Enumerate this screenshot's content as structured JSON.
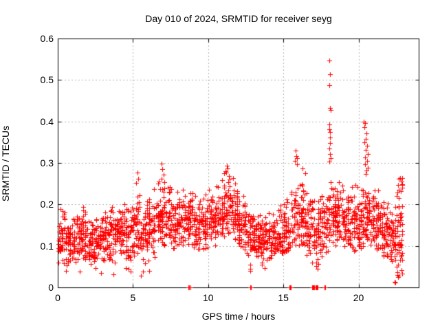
{
  "window": {
    "background": "#ffffff"
  },
  "chart_data": {
    "type": "scatter",
    "title": "Day 010 of 2024, SRMTID for receiver seyg",
    "xlabel": "GPS time / hours",
    "ylabel": "SRMTID / TECUs",
    "xlim": [
      0,
      24
    ],
    "ylim": [
      0,
      0.6
    ],
    "xticks": [
      {
        "v": 0,
        "label": "0"
      },
      {
        "v": 5,
        "label": "5"
      },
      {
        "v": 10,
        "label": "10"
      },
      {
        "v": 15,
        "label": "15"
      },
      {
        "v": 20,
        "label": "20"
      }
    ],
    "yticks": [
      {
        "v": 0,
        "label": "0"
      },
      {
        "v": 0.1,
        "label": "0.1"
      },
      {
        "v": 0.2,
        "label": "0.2"
      },
      {
        "v": 0.3,
        "label": "0.3"
      },
      {
        "v": 0.4,
        "label": "0.4"
      },
      {
        "v": 0.5,
        "label": "0.5"
      },
      {
        "v": 0.6,
        "label": "0.6"
      }
    ],
    "grid": {
      "show": true,
      "style": "dashed",
      "color": "#b3b3b3"
    },
    "legend": null,
    "marker": {
      "shape": "plus",
      "color": "#ff0000",
      "size": 7
    },
    "series_name": "SRMTID",
    "band_segments_columns": [
      "x_start_hour",
      "x_end_hour",
      "n_points",
      "y_center",
      "y_sigma",
      "y_min",
      "y_max"
    ],
    "band_segments": [
      [
        0.0,
        0.5,
        50,
        0.125,
        0.035,
        0.04,
        0.19
      ],
      [
        0.5,
        1.0,
        50,
        0.115,
        0.03,
        0.05,
        0.17
      ],
      [
        1.0,
        1.5,
        50,
        0.12,
        0.03,
        0.06,
        0.18
      ],
      [
        1.5,
        2.0,
        50,
        0.125,
        0.032,
        0.06,
        0.2
      ],
      [
        2.0,
        2.5,
        50,
        0.11,
        0.03,
        0.05,
        0.17
      ],
      [
        2.5,
        3.0,
        50,
        0.115,
        0.03,
        0.035,
        0.17
      ],
      [
        3.0,
        3.5,
        50,
        0.12,
        0.03,
        0.06,
        0.18
      ],
      [
        3.5,
        4.0,
        50,
        0.13,
        0.033,
        0.03,
        0.2
      ],
      [
        4.0,
        4.5,
        50,
        0.14,
        0.032,
        0.08,
        0.21
      ],
      [
        4.5,
        5.0,
        50,
        0.135,
        0.032,
        0.04,
        0.2
      ],
      [
        5.0,
        5.5,
        50,
        0.14,
        0.035,
        0.07,
        0.26
      ],
      [
        5.5,
        6.0,
        50,
        0.13,
        0.035,
        0.03,
        0.22
      ],
      [
        6.0,
        6.5,
        50,
        0.15,
        0.035,
        0.04,
        0.25
      ],
      [
        6.5,
        7.0,
        50,
        0.175,
        0.04,
        0.1,
        0.295
      ],
      [
        7.0,
        7.5,
        50,
        0.17,
        0.04,
        0.1,
        0.28
      ],
      [
        7.5,
        8.0,
        50,
        0.155,
        0.035,
        0.08,
        0.245
      ],
      [
        8.0,
        8.5,
        50,
        0.165,
        0.035,
        0.1,
        0.27
      ],
      [
        8.5,
        9.0,
        50,
        0.16,
        0.033,
        0.1,
        0.25
      ],
      [
        9.0,
        9.5,
        50,
        0.15,
        0.032,
        0.09,
        0.24
      ],
      [
        9.5,
        10.0,
        50,
        0.15,
        0.032,
        0.09,
        0.235
      ],
      [
        10.0,
        10.5,
        50,
        0.16,
        0.033,
        0.1,
        0.25
      ],
      [
        10.5,
        11.0,
        50,
        0.17,
        0.035,
        0.11,
        0.26
      ],
      [
        11.0,
        11.5,
        50,
        0.19,
        0.04,
        0.12,
        0.295
      ],
      [
        11.5,
        12.0,
        50,
        0.175,
        0.038,
        0.11,
        0.27
      ],
      [
        12.0,
        12.5,
        50,
        0.15,
        0.035,
        0.09,
        0.23
      ],
      [
        12.5,
        13.0,
        50,
        0.13,
        0.035,
        0.04,
        0.2
      ],
      [
        13.0,
        13.5,
        50,
        0.12,
        0.03,
        0.07,
        0.18
      ],
      [
        13.5,
        14.0,
        50,
        0.115,
        0.03,
        0.05,
        0.17
      ],
      [
        14.0,
        14.5,
        50,
        0.12,
        0.03,
        0.07,
        0.185
      ],
      [
        14.5,
        15.0,
        50,
        0.13,
        0.032,
        0.08,
        0.2
      ],
      [
        15.0,
        15.5,
        50,
        0.14,
        0.035,
        0.08,
        0.23
      ],
      [
        15.5,
        16.0,
        50,
        0.175,
        0.045,
        0.1,
        0.33
      ],
      [
        16.0,
        16.5,
        50,
        0.17,
        0.045,
        0.1,
        0.31
      ],
      [
        16.5,
        17.0,
        50,
        0.15,
        0.04,
        0.07,
        0.27
      ],
      [
        17.0,
        17.5,
        50,
        0.13,
        0.04,
        0.05,
        0.24
      ],
      [
        17.5,
        18.0,
        50,
        0.14,
        0.04,
        0.06,
        0.26
      ],
      [
        18.0,
        18.5,
        55,
        0.17,
        0.045,
        0.1,
        0.3
      ],
      [
        18.5,
        19.0,
        55,
        0.175,
        0.04,
        0.11,
        0.27
      ],
      [
        19.0,
        19.5,
        50,
        0.16,
        0.038,
        0.1,
        0.25
      ],
      [
        19.5,
        20.0,
        50,
        0.155,
        0.038,
        0.08,
        0.26
      ],
      [
        20.0,
        20.5,
        55,
        0.16,
        0.04,
        0.09,
        0.3
      ],
      [
        20.5,
        21.0,
        55,
        0.17,
        0.042,
        0.1,
        0.3
      ],
      [
        21.0,
        21.5,
        50,
        0.15,
        0.038,
        0.09,
        0.24
      ],
      [
        21.5,
        22.0,
        50,
        0.13,
        0.035,
        0.07,
        0.22
      ],
      [
        22.0,
        22.5,
        50,
        0.12,
        0.035,
        0.04,
        0.2
      ],
      [
        22.5,
        22.95,
        55,
        0.13,
        0.06,
        0.025,
        0.265
      ]
    ],
    "outlier_points": [
      [
        18.05,
        0.547
      ],
      [
        18.08,
        0.513
      ],
      [
        18.06,
        0.488
      ],
      [
        18.1,
        0.433
      ],
      [
        18.13,
        0.428
      ],
      [
        18.07,
        0.392
      ],
      [
        18.05,
        0.381
      ],
      [
        18.11,
        0.374
      ],
      [
        18.08,
        0.362
      ],
      [
        18.12,
        0.348
      ],
      [
        18.06,
        0.334
      ],
      [
        18.09,
        0.322
      ],
      [
        18.14,
        0.312
      ],
      [
        18.04,
        0.303
      ],
      [
        20.36,
        0.4
      ],
      [
        20.44,
        0.396
      ],
      [
        20.41,
        0.386
      ],
      [
        20.52,
        0.371
      ],
      [
        20.47,
        0.358
      ],
      [
        20.39,
        0.349
      ],
      [
        20.55,
        0.341
      ],
      [
        20.5,
        0.331
      ],
      [
        20.6,
        0.322
      ],
      [
        20.45,
        0.313
      ],
      [
        20.57,
        0.305
      ],
      [
        20.42,
        0.296
      ],
      [
        20.63,
        0.288
      ],
      [
        20.53,
        0.281
      ],
      [
        20.48,
        0.273
      ],
      [
        15.82,
        0.33
      ],
      [
        15.87,
        0.316
      ],
      [
        15.79,
        0.305
      ],
      [
        15.92,
        0.296
      ],
      [
        16.26,
        0.287
      ],
      [
        11.24,
        0.294
      ],
      [
        11.31,
        0.286
      ],
      [
        11.19,
        0.277
      ],
      [
        11.36,
        0.268
      ],
      [
        6.88,
        0.298
      ],
      [
        6.97,
        0.285
      ],
      [
        7.05,
        0.272
      ],
      [
        6.92,
        0.262
      ],
      [
        5.28,
        0.276
      ],
      [
        5.34,
        0.262
      ],
      [
        5.22,
        0.252
      ],
      [
        22.78,
        0.264
      ],
      [
        22.84,
        0.256
      ],
      [
        22.89,
        0.248
      ],
      [
        0.55,
        0.04
      ],
      [
        1.45,
        0.038
      ],
      [
        2.52,
        0.046
      ],
      [
        2.9,
        0.035
      ],
      [
        3.72,
        0.032
      ],
      [
        4.85,
        0.038
      ],
      [
        5.52,
        0.028
      ],
      [
        6.08,
        0.04
      ],
      [
        12.82,
        0.04
      ],
      [
        13.78,
        0.047
      ],
      [
        16.9,
        0.06
      ],
      [
        17.3,
        0.045
      ],
      [
        22.42,
        0.013
      ],
      [
        22.45,
        0.012
      ],
      [
        22.6,
        0.03
      ],
      [
        22.65,
        0.025
      ]
    ],
    "zero_points": [
      8.7,
      8.74,
      8.8,
      12.79,
      12.83,
      15.42,
      15.46,
      15.5,
      16.92,
      16.96,
      17.0,
      17.04,
      17.16,
      17.2,
      17.24,
      17.28,
      17.72,
      17.76
    ]
  }
}
